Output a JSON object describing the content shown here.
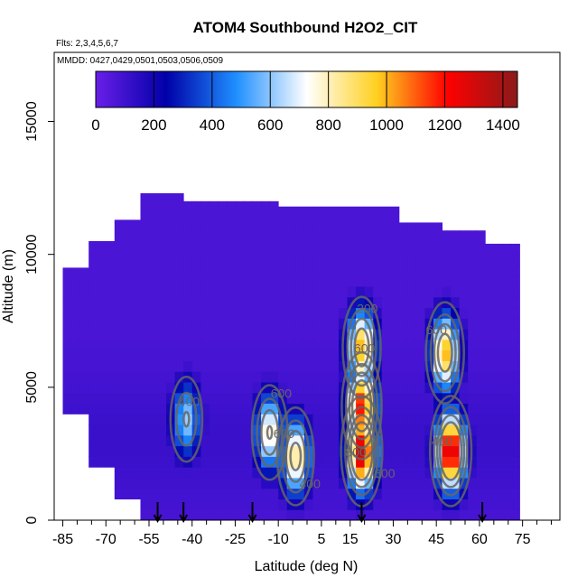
{
  "chart_data": {
    "type": "heatmap",
    "title": "ATOM4 Southbound H2O2_CIT",
    "subtitle_lines": [
      "Flts: 2,3,4,5,6,7",
      "MMDD: 0427,0429,0501,0503,0506,0509"
    ],
    "xlabel": "Latitude (deg N)",
    "ylabel": "Altitude (m)",
    "xlim": [
      -88,
      88
    ],
    "ylim": [
      0,
      17600
    ],
    "x_ticks": [
      "-85",
      "-70",
      "-55",
      "-40",
      "-25",
      "-10",
      "5",
      "15",
      "30",
      "45",
      "60",
      "75"
    ],
    "x_tick_values": [
      -85,
      -70,
      -55,
      -40,
      -25,
      -10,
      5,
      15,
      30,
      45,
      60,
      75
    ],
    "y_ticks": [
      "0",
      "5000",
      "10000",
      "15000"
    ],
    "y_tick_values": [
      0,
      5000,
      10000,
      15000
    ],
    "colorbar": {
      "min": 0,
      "max": 1450,
      "tick_labels": [
        "0",
        "200",
        "400",
        "600",
        "800",
        "1000",
        "1200",
        "1400"
      ],
      "tick_values": [
        0,
        200,
        400,
        600,
        800,
        1000,
        1200,
        1400
      ],
      "colors": [
        "#6a1ee8",
        "#0000a8",
        "#1f8fff",
        "#ffffff",
        "#ffd020",
        "#ff0000",
        "#8b1a1a"
      ]
    },
    "contour_labels": [
      {
        "text": "200",
        "lat": 21,
        "alt": 7800
      },
      {
        "text": "600",
        "lat": 20,
        "alt": 6300
      },
      {
        "text": "600",
        "lat": -9,
        "alt": 4600
      },
      {
        "text": "600",
        "lat": -8,
        "alt": 3100
      },
      {
        "text": "400",
        "lat": -41,
        "alt": 4300
      },
      {
        "text": "800",
        "lat": 17,
        "alt": 2400
      },
      {
        "text": "600",
        "lat": 27,
        "alt": 1600
      },
      {
        "text": "600",
        "lat": 45,
        "alt": 7000
      },
      {
        "text": "400",
        "lat": 1,
        "alt": 1200
      },
      {
        "text": "400",
        "lat": 47,
        "alt": 2800
      }
    ],
    "flight_arrows_lat": [
      -52,
      -43,
      -19,
      19,
      61
    ],
    "peaks": [
      {
        "lat": -42,
        "alt": 3800,
        "value": 620
      },
      {
        "lat": -13,
        "alt": 3300,
        "value": 820
      },
      {
        "lat": -4,
        "alt": 2400,
        "value": 900
      },
      {
        "lat": 19,
        "alt": 6500,
        "value": 1000
      },
      {
        "lat": 19,
        "alt": 4300,
        "value": 1200
      },
      {
        "lat": 19,
        "alt": 2600,
        "value": 1350
      },
      {
        "lat": 48,
        "alt": 6300,
        "value": 1000
      },
      {
        "lat": 50,
        "alt": 2600,
        "value": 1350
      }
    ]
  }
}
